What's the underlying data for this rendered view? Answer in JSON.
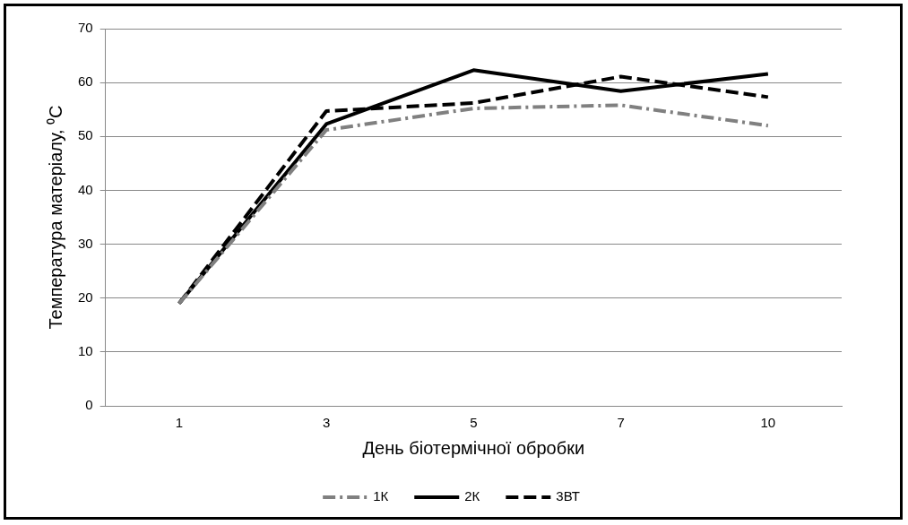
{
  "chart_data": {
    "type": "line",
    "xlabel": "День біотермічної обробки",
    "ylabel": "Температура матеріалу, ⁰C",
    "categories": [
      "1",
      "3",
      "5",
      "7",
      "10"
    ],
    "ylim": [
      0,
      70
    ],
    "yticks": [
      0,
      10,
      20,
      30,
      40,
      50,
      60,
      70
    ],
    "grid": "y",
    "legend": "bottom",
    "marker": "none",
    "series": [
      {
        "name": "1К",
        "color": "#808080",
        "line_style": "dashdot",
        "values": [
          19,
          51.2,
          55.2,
          55.8,
          52
        ]
      },
      {
        "name": "2К",
        "color": "#000000",
        "line_style": "solid",
        "values": [
          19,
          52.3,
          62.3,
          58.4,
          61.6
        ]
      },
      {
        "name": "3ВТ",
        "color": "#000000",
        "line_style": "dashed",
        "values": [
          19,
          54.7,
          56.2,
          61.1,
          57.3
        ]
      }
    ]
  }
}
